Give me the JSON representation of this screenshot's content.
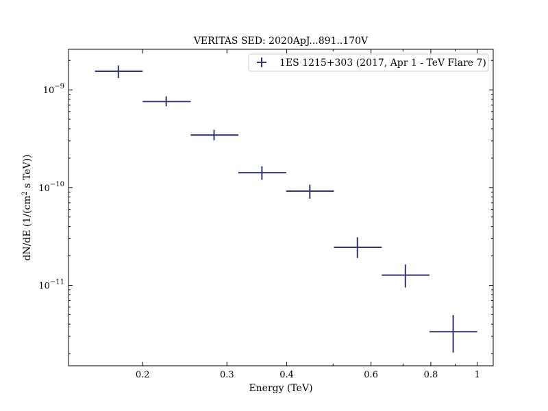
{
  "chart_data": {
    "type": "scatter",
    "title": "VERITAS SED: 2020ApJ...891..170V",
    "xlabel": "Energy (TeV)",
    "ylabel_main": "dN/dE (1/(cm",
    "ylabel_sup": "2",
    "ylabel_tail": " s TeV))",
    "x_scale": "log",
    "y_scale": "log",
    "xlim": [
      0.14,
      1.08
    ],
    "ylim": [
      1.5e-12,
      2.6e-09
    ],
    "x_ticks": [
      {
        "value": 0.2,
        "label": "0.2"
      },
      {
        "value": 0.3,
        "label": "0.3"
      },
      {
        "value": 0.4,
        "label": "0.4"
      },
      {
        "value": 0.6,
        "label": "0.6"
      },
      {
        "value": 0.8,
        "label": "0.8"
      },
      {
        "value": 1.0,
        "label": "1"
      }
    ],
    "y_ticks": [
      {
        "value": 1e-09,
        "base": "10",
        "exp": "−9"
      },
      {
        "value": 1e-10,
        "base": "10",
        "exp": "−10"
      },
      {
        "value": 1e-11,
        "base": "10",
        "exp": "−11"
      }
    ],
    "legend_position": "top-right",
    "grid": false,
    "series": [
      {
        "name": "1ES 1215+303 (2017, Apr 1 - TeV Flare 7)",
        "color": "#323376",
        "points": [
          {
            "x": 0.178,
            "x_low": 0.159,
            "x_high": 0.2,
            "y": 1.55e-09,
            "y_low": 1.32e-09,
            "y_high": 1.78e-09
          },
          {
            "x": 0.224,
            "x_low": 0.2,
            "x_high": 0.252,
            "y": 7.6e-10,
            "y_low": 6.8e-10,
            "y_high": 8.6e-10
          },
          {
            "x": 0.282,
            "x_low": 0.252,
            "x_high": 0.317,
            "y": 3.45e-10,
            "y_low": 3.05e-10,
            "y_high": 3.9e-10
          },
          {
            "x": 0.355,
            "x_low": 0.317,
            "x_high": 0.399,
            "y": 1.42e-10,
            "y_low": 1.2e-10,
            "y_high": 1.65e-10
          },
          {
            "x": 0.447,
            "x_low": 0.399,
            "x_high": 0.502,
            "y": 9.2e-11,
            "y_low": 7.7e-11,
            "y_high": 1.07e-10
          },
          {
            "x": 0.562,
            "x_low": 0.502,
            "x_high": 0.632,
            "y": 2.45e-11,
            "y_low": 1.9e-11,
            "y_high": 3.1e-11
          },
          {
            "x": 0.708,
            "x_low": 0.632,
            "x_high": 0.795,
            "y": 1.27e-11,
            "y_low": 9.5e-12,
            "y_high": 1.63e-11
          },
          {
            "x": 0.891,
            "x_low": 0.795,
            "x_high": 1.0,
            "y": 3.35e-12,
            "y_low": 2.05e-12,
            "y_high": 4.95e-12
          }
        ]
      }
    ]
  }
}
